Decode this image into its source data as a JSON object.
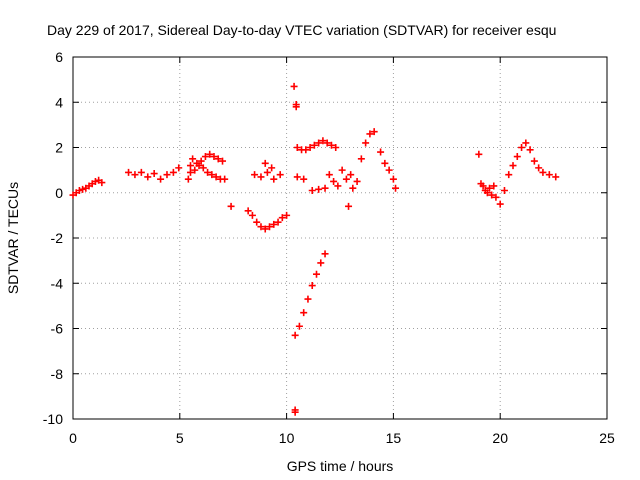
{
  "chart_data": {
    "type": "scatter",
    "title": "Day 229 of 2017, Sidereal Day-to-day VTEC variation (SDTVAR) for receiver esqu",
    "xlabel": "GPS time / hours",
    "ylabel": "SDTVAR / TECUs",
    "xlim": [
      0,
      25
    ],
    "ylim": [
      -10,
      6
    ],
    "x_ticks": [
      "0",
      "5",
      "10",
      "15",
      "20",
      "25"
    ],
    "y_ticks": [
      "-10",
      "-8",
      "-6",
      "-4",
      "-2",
      "0",
      "2",
      "4",
      "6"
    ],
    "grid": true,
    "marker": "plus",
    "marker_color": "#ff0000",
    "series": [
      {
        "x": [
          0.0,
          0.15,
          0.3,
          0.45,
          0.6,
          0.75,
          0.9,
          1.05,
          1.2,
          1.35,
          2.6,
          2.9,
          3.2,
          3.5,
          3.8,
          4.1,
          4.4,
          4.7,
          4.95,
          5.4,
          5.5,
          5.6,
          5.8,
          6.0,
          6.2,
          6.4,
          6.6,
          6.8,
          7.0,
          5.5,
          5.7,
          5.9,
          6.1,
          6.3,
          6.5,
          6.7,
          6.9,
          7.1,
          7.4,
          8.2,
          8.4,
          8.6,
          8.8,
          9.0,
          9.2,
          9.4,
          9.6,
          9.8,
          10.0,
          8.5,
          8.8,
          9.1,
          9.4,
          9.7,
          9.0,
          9.3,
          10.4,
          10.4,
          10.45,
          10.5,
          10.7,
          10.9,
          11.1,
          11.3,
          11.5,
          11.7,
          11.9,
          12.1,
          12.3,
          10.5,
          10.8,
          10.4,
          10.6,
          10.8,
          11.0,
          11.2,
          11.4,
          11.6,
          11.8,
          10.35,
          10.45,
          11.2,
          11.5,
          11.8,
          12.0,
          12.2,
          12.4,
          12.6,
          12.8,
          13.0,
          12.9,
          13.1,
          13.3,
          13.5,
          13.7,
          13.9,
          14.1,
          14.4,
          14.6,
          14.8,
          15.0,
          15.1,
          19.0,
          19.2,
          19.4,
          19.6,
          19.8,
          20.0,
          19.1,
          19.3,
          19.5,
          19.7,
          20.2,
          20.4,
          20.6,
          20.8,
          21.0,
          21.2,
          21.4,
          21.6,
          21.8,
          22.0,
          22.3,
          22.6
        ],
        "y": [
          -0.1,
          0.0,
          0.1,
          0.15,
          0.2,
          0.3,
          0.4,
          0.5,
          0.55,
          0.45,
          0.9,
          0.8,
          0.9,
          0.7,
          0.85,
          0.6,
          0.8,
          0.9,
          1.1,
          0.6,
          1.2,
          1.5,
          1.3,
          1.4,
          1.6,
          1.7,
          1.6,
          1.5,
          1.4,
          0.9,
          1.0,
          1.2,
          1.1,
          0.9,
          0.8,
          0.7,
          0.6,
          0.6,
          -0.6,
          -0.8,
          -1.0,
          -1.3,
          -1.5,
          -1.6,
          -1.5,
          -1.4,
          -1.3,
          -1.1,
          -1.0,
          0.8,
          0.7,
          0.9,
          0.6,
          0.8,
          1.3,
          1.1,
          -9.6,
          -9.7,
          3.9,
          2.0,
          1.9,
          1.9,
          2.0,
          2.1,
          2.2,
          2.3,
          2.2,
          2.1,
          2.0,
          0.7,
          0.6,
          -6.3,
          -5.9,
          -5.3,
          -4.7,
          -4.1,
          -3.6,
          -3.1,
          -2.7,
          4.7,
          3.8,
          0.1,
          0.15,
          0.2,
          0.8,
          0.5,
          0.3,
          1.0,
          0.6,
          0.8,
          -0.6,
          0.2,
          0.5,
          1.5,
          2.2,
          2.6,
          2.7,
          1.8,
          1.3,
          1.0,
          0.6,
          0.2,
          1.7,
          0.3,
          0.0,
          -0.1,
          -0.2,
          -0.5,
          0.4,
          0.1,
          0.2,
          0.3,
          0.1,
          0.8,
          1.2,
          1.6,
          2.0,
          2.2,
          1.9,
          1.4,
          1.1,
          0.9,
          0.8,
          0.7
        ]
      }
    ]
  }
}
